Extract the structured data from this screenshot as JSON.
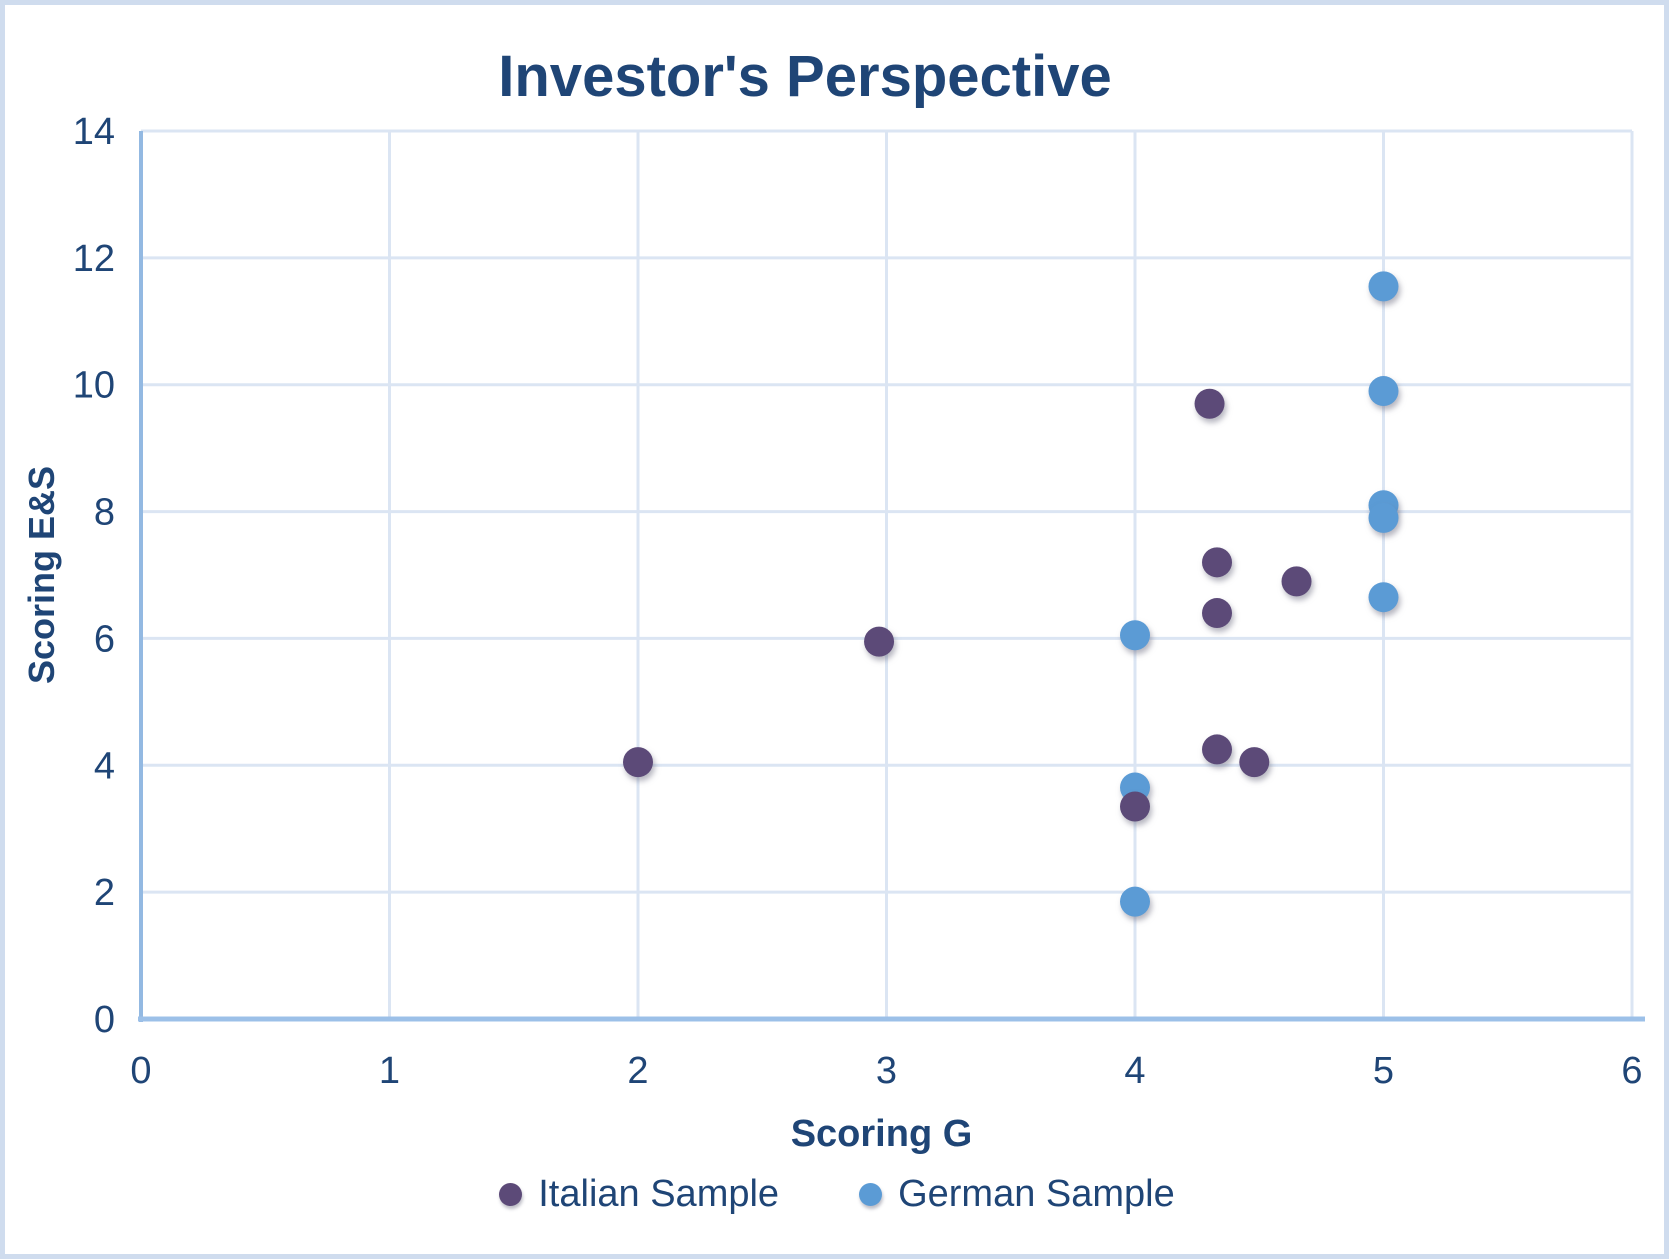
{
  "chart_data": {
    "type": "scatter",
    "title": "Investor's Perspective",
    "xlabel": "Scoring G",
    "ylabel": "Scoring E&S",
    "xlim": [
      0,
      6
    ],
    "ylim": [
      0,
      14
    ],
    "x_ticks": [
      0,
      1,
      2,
      3,
      4,
      5,
      6
    ],
    "y_ticks": [
      0,
      2,
      4,
      6,
      8,
      10,
      12,
      14
    ],
    "grid": true,
    "legend_position": "bottom-center",
    "series": [
      {
        "name": "Italian Sample",
        "color": "#5C4A78",
        "points": [
          [
            2.0,
            4.05
          ],
          [
            2.97,
            5.95
          ],
          [
            4.3,
            9.7
          ],
          [
            4.33,
            7.2
          ],
          [
            4.33,
            6.4
          ],
          [
            4.65,
            6.9
          ],
          [
            4.33,
            4.25
          ],
          [
            4.48,
            4.05
          ],
          [
            4.0,
            3.35
          ]
        ]
      },
      {
        "name": "German Sample",
        "color": "#5B9BD5",
        "points": [
          [
            5,
            11.55
          ],
          [
            5,
            9.9
          ],
          [
            5,
            8.1
          ],
          [
            5,
            7.9
          ],
          [
            5,
            6.65
          ],
          [
            4,
            6.05
          ],
          [
            4,
            3.65
          ],
          [
            4,
            1.85
          ]
        ]
      }
    ]
  },
  "colors": {
    "title_text": "#1f4576",
    "tick_text": "#1f4576",
    "gridline": "#dbe5f3",
    "y_axis_line": "#93b9e2",
    "x_axis_line": "#9cc0e8",
    "canvas_border": "#cfdcee",
    "italian_marker": "#5C4A78",
    "german_marker": "#5B9BD5"
  }
}
